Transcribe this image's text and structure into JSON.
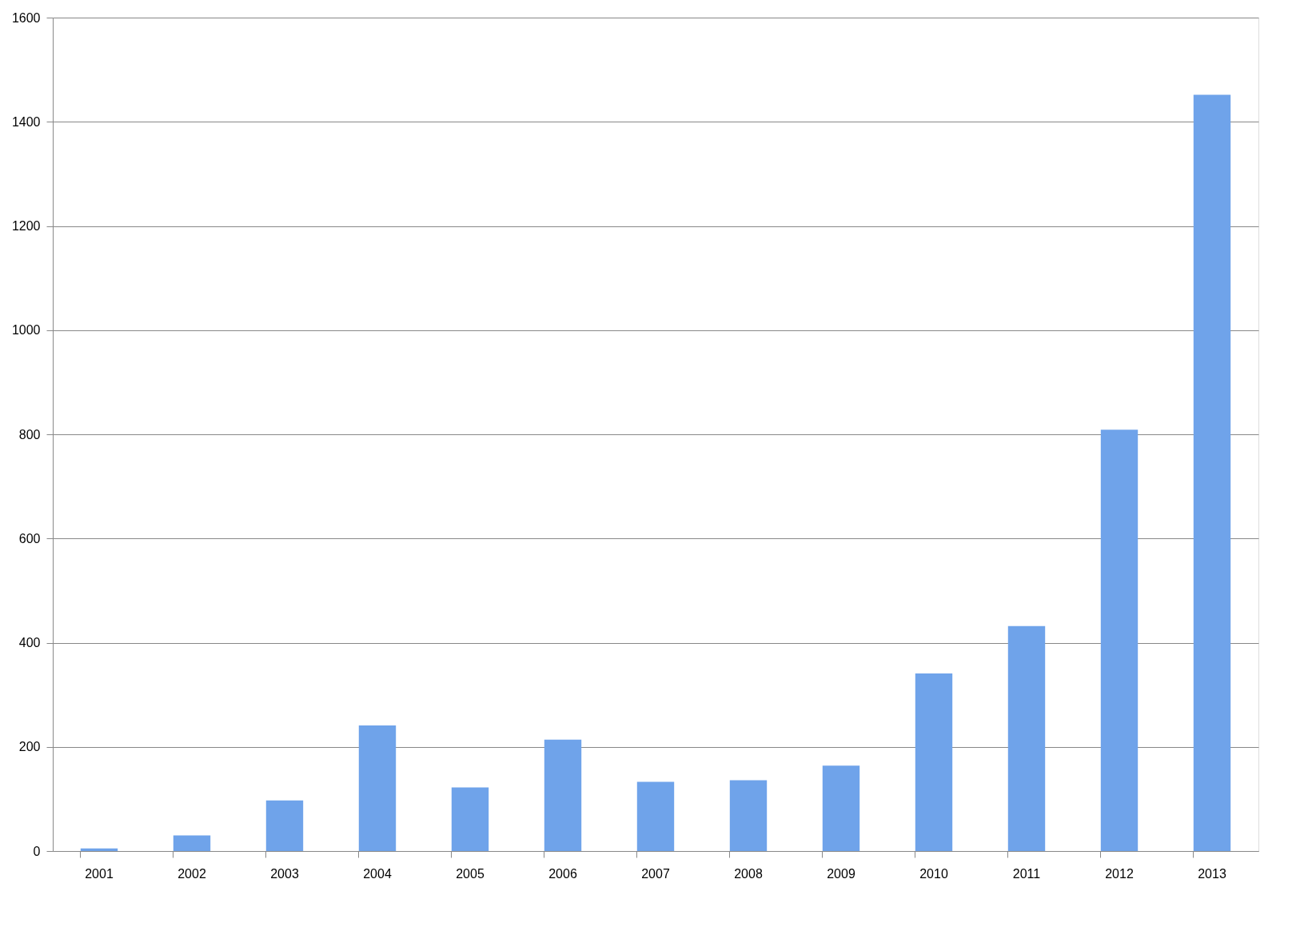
{
  "chart_data": {
    "type": "bar",
    "categories": [
      "2001",
      "2002",
      "2003",
      "2004",
      "2005",
      "2006",
      "2007",
      "2008",
      "2009",
      "2010",
      "2011",
      "2012",
      "2013"
    ],
    "values": [
      5,
      30,
      97,
      241,
      122,
      214,
      133,
      136,
      164,
      341,
      432,
      809,
      1452
    ],
    "color": "#6fa3ea",
    "ylim": [
      0,
      1600
    ],
    "yticks": [
      0,
      200,
      400,
      600,
      800,
      1000,
      1200,
      1400,
      1600
    ],
    "grid": "y"
  }
}
